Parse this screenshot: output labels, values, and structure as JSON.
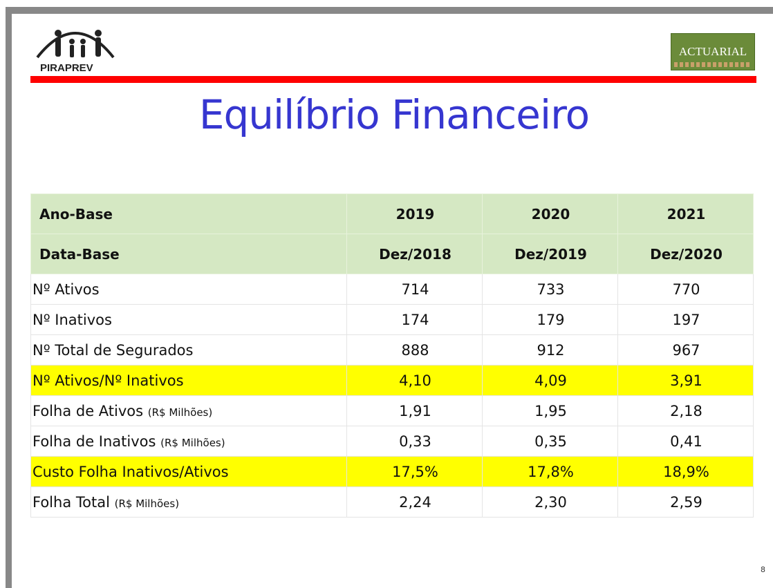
{
  "header": {
    "logo_left": "PIRAPREV",
    "logo_right": "ACTUARIAL"
  },
  "title": "Equilíbrio Financeiro",
  "table": {
    "header_rows": [
      [
        "Ano-Base",
        "2019",
        "2020",
        "2021"
      ],
      [
        "Data-Base",
        "Dez/2018",
        "Dez/2019",
        "Dez/2020"
      ]
    ],
    "rows": [
      {
        "label": "Nº Ativos",
        "values": [
          "714",
          "733",
          "770"
        ]
      },
      {
        "label": "Nº Inativos",
        "values": [
          "174",
          "179",
          "197"
        ]
      },
      {
        "label": "Nº Total de Segurados",
        "values": [
          "888",
          "912",
          "967"
        ]
      },
      {
        "label": "Nº Ativos/Nº Inativos",
        "values": [
          "4,10",
          "4,09",
          "3,91"
        ],
        "highlight": true
      },
      {
        "label": "Folha de Ativos",
        "unit": "(R$ Milhões)",
        "values": [
          "1,91",
          "1,95",
          "2,18"
        ]
      },
      {
        "label": "Folha de Inativos",
        "unit": "(R$ Milhões)",
        "values": [
          "0,33",
          "0,35",
          "0,41"
        ]
      },
      {
        "label": "Custo Folha Inativos/Ativos",
        "values": [
          "17,5%",
          "17,8%",
          "18,9%"
        ],
        "highlight": true
      },
      {
        "label": "Folha Total",
        "unit": "(R$ Milhões)",
        "values": [
          "2,24",
          "2,30",
          "2,59"
        ]
      }
    ]
  },
  "page_number": "8"
}
